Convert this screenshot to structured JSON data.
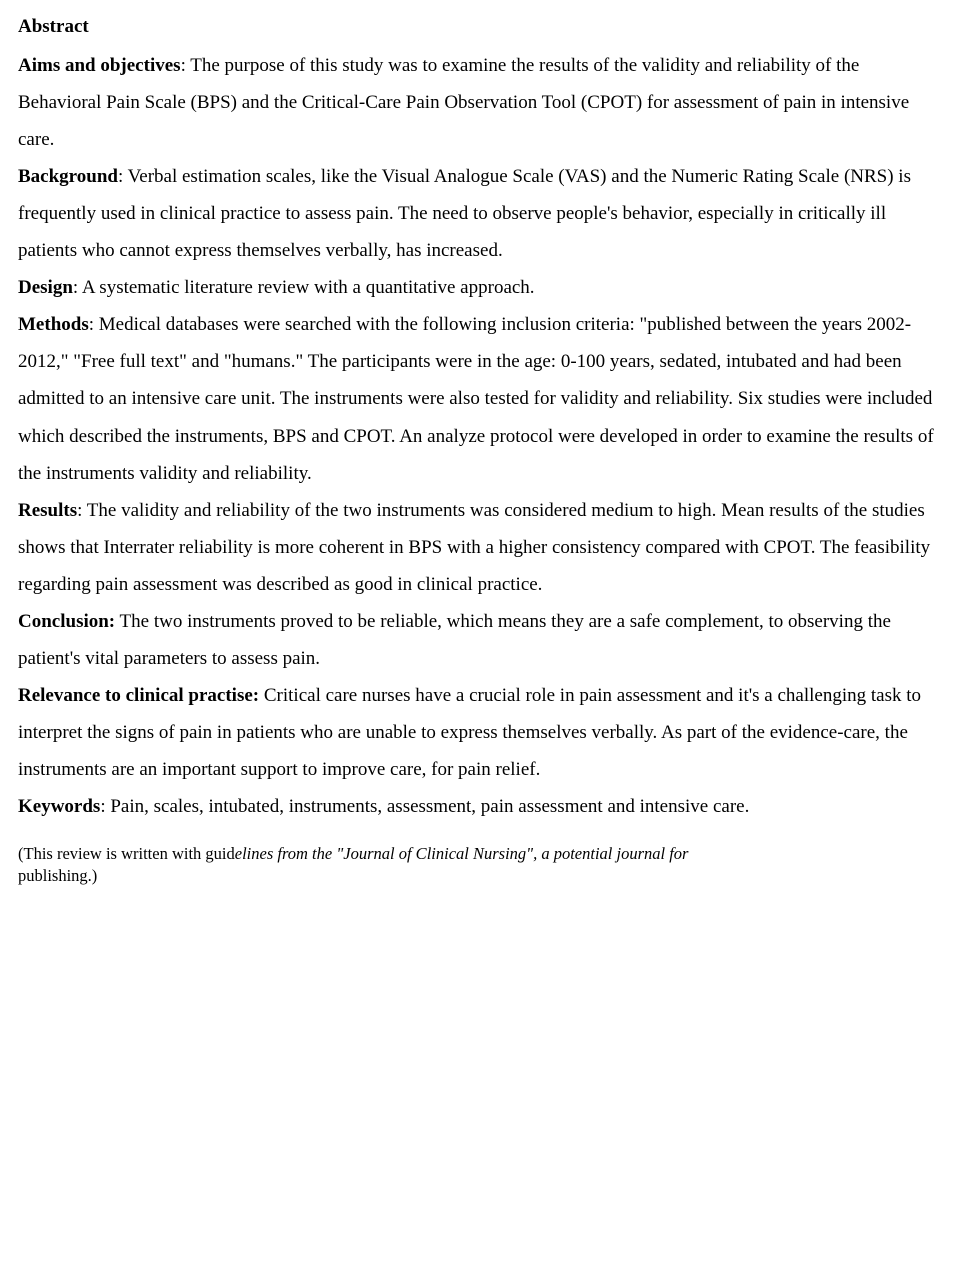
{
  "title": "Abstract",
  "sections": {
    "aims_label": "Aims and objectives",
    "aims_text": ": The purpose of this study was to examine the results of the validity and reliability of the Behavioral Pain Scale (BPS) and the Critical-Care Pain Observation Tool (CPOT) for assessment of pain in intensive care.",
    "background_label": "Background",
    "background_text": ": Verbal estimation scales, like the Visual Analogue Scale (VAS) and the Numeric Rating Scale (NRS) is frequently used in clinical practice to assess pain. The need to observe people's behavior, especially in critically ill patients who cannot express themselves verbally, has increased.",
    "design_label": "Design",
    "design_text": ": A systematic literature review with a quantitative approach.",
    "methods_label": "Methods",
    "methods_text": ": Medical databases were searched with the following inclusion criteria: \"published between the years 2002-2012,\" \"Free full text\" and \"humans.\" The participants were in the age: 0-100 years, sedated, intubated and had been admitted to an intensive care unit. The instruments were also tested for validity and reliability. Six studies were included which described the instruments, BPS and CPOT. An analyze protocol were developed in order to examine the results of the instruments validity and reliability.",
    "results_label": "Results",
    "results_text": ": The validity and reliability of the two instruments was considered medium to high. Mean results of the studies shows that Interrater reliability is more coherent in BPS with a higher consistency compared with CPOT. The feasibility regarding pain assessment was described as good in clinical practice.",
    "conclusion_label": "Conclusion:",
    "conclusion_text": " The two instruments proved to be reliable, which means they are a safe complement, to observing the patient's vital parameters to assess pain.",
    "relevance_label": "Relevance to clinical practise:",
    "relevance_text": " Critical care nurses have a crucial role in pain assessment and it's a challenging task to interpret the signs of pain in patients who are unable to express themselves verbally. As part of the evidence-care, the instruments are an important support to improve care, for pain relief.",
    "keywords_label": "Keywords",
    "keywords_text": ": Pain, scales, intubated, instruments, assessment, pain assessment and intensive care."
  },
  "footnote": {
    "part1": "(This review is written with guid",
    "part2_italic": "elines from the \"Journal of Clinical Nursing\", a potential journal for",
    "part3": "publishing.)"
  }
}
